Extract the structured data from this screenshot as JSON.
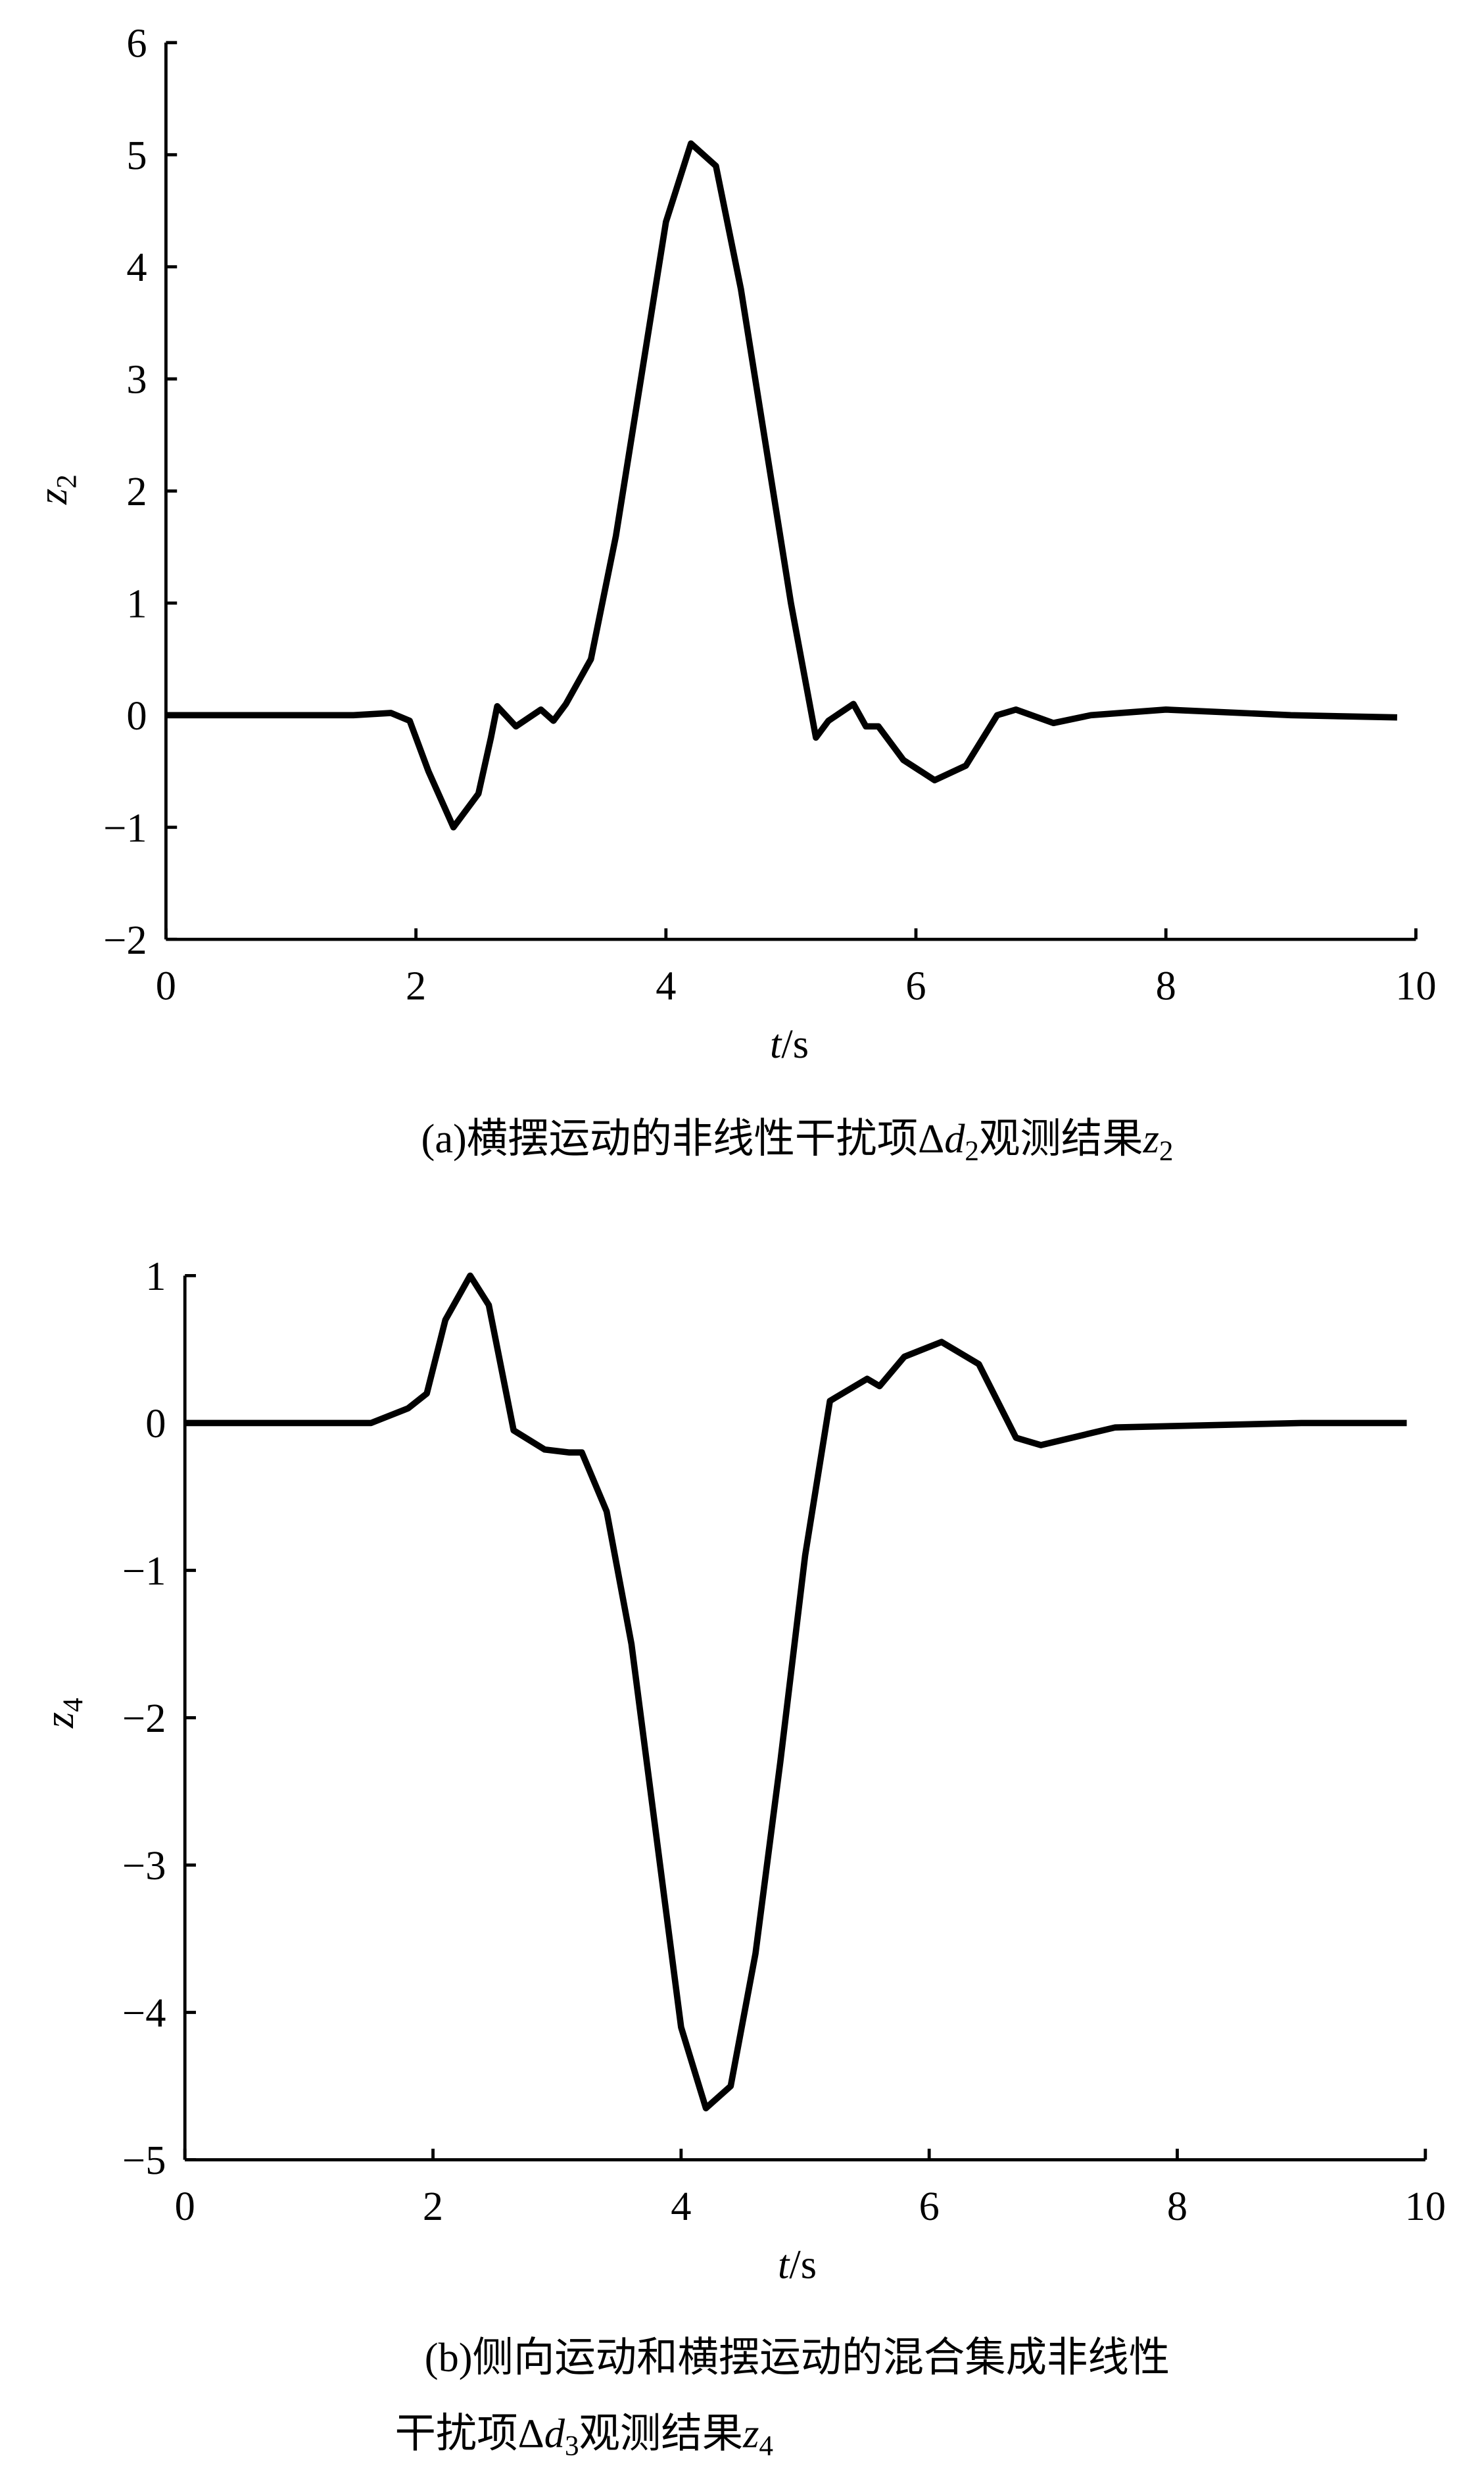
{
  "chart_data": [
    {
      "type": "line",
      "color": "#000000",
      "x": [
        0,
        1.5,
        1.8,
        1.95,
        2.1,
        2.3,
        2.5,
        2.6,
        2.65,
        2.8,
        3.0,
        3.1,
        3.2,
        3.4,
        3.6,
        3.8,
        4.0,
        4.2,
        4.4,
        4.6,
        4.8,
        5.0,
        5.2,
        5.3,
        5.5,
        5.6,
        5.7,
        5.9,
        6.15,
        6.4,
        6.65,
        6.8,
        7.1,
        7.4,
        8.0,
        9.0,
        9.85
      ],
      "values": [
        0,
        0,
        0.02,
        -0.05,
        -0.5,
        -1.0,
        -0.7,
        -0.2,
        0.08,
        -0.1,
        0.05,
        -0.05,
        0.1,
        0.5,
        1.6,
        3.0,
        4.4,
        5.1,
        4.9,
        3.8,
        2.4,
        1.0,
        -0.2,
        -0.05,
        0.1,
        -0.1,
        -0.1,
        -0.4,
        -0.58,
        -0.45,
        0.0,
        0.05,
        -0.07,
        0.0,
        0.05,
        0.0,
        -0.02
      ],
      "xlim": [
        0,
        10
      ],
      "xticks": [
        0,
        2,
        4,
        6,
        8,
        10
      ],
      "ylim": [
        -2,
        6
      ],
      "yticks": [
        {
          "value": -2,
          "label": "−2"
        },
        {
          "value": -1,
          "label": "−1"
        },
        0,
        1,
        2,
        3,
        4,
        5,
        6
      ],
      "xlabel": [
        "t",
        "/s"
      ],
      "ylabel": [
        "z",
        "2"
      ],
      "caption": [
        "(a)横摆运动的非线性干扰项Δ",
        "d",
        "2",
        "观测结果",
        "z",
        "2"
      ]
    },
    {
      "type": "line",
      "color": "#000000",
      "x": [
        0,
        1.5,
        1.8,
        1.95,
        2.1,
        2.3,
        2.45,
        2.65,
        2.9,
        3.1,
        3.2,
        3.4,
        3.6,
        3.8,
        4.0,
        4.2,
        4.4,
        4.6,
        4.8,
        5.0,
        5.2,
        5.5,
        5.6,
        5.8,
        6.1,
        6.4,
        6.7,
        6.9,
        7.5,
        8.0,
        9.0,
        9.85
      ],
      "values": [
        0,
        0,
        0.1,
        0.2,
        0.7,
        1.0,
        0.8,
        -0.05,
        -0.18,
        -0.2,
        -0.2,
        -0.6,
        -1.5,
        -2.8,
        -4.1,
        -4.65,
        -4.5,
        -3.6,
        -2.3,
        -0.9,
        0.15,
        0.3,
        0.25,
        0.45,
        0.55,
        0.4,
        -0.1,
        -0.15,
        -0.03,
        -0.02,
        0.0,
        0.0
      ],
      "xlim": [
        0,
        10
      ],
      "xticks": [
        0,
        2,
        4,
        6,
        8,
        10
      ],
      "ylim": [
        -5,
        1
      ],
      "yticks": [
        {
          "value": -5,
          "label": "−5"
        },
        {
          "value": -4,
          "label": "−4"
        },
        {
          "value": -3,
          "label": "−3"
        },
        {
          "value": -2,
          "label": "−2"
        },
        {
          "value": -1,
          "label": "−1"
        },
        0,
        1
      ],
      "xlabel": [
        "t",
        "/s"
      ],
      "ylabel": [
        "z",
        "4"
      ],
      "caption": [
        "(b)侧向运动和横摆运动的混合集成非线性",
        "干扰项Δ",
        "d",
        "3",
        "观测结果",
        "z",
        "4"
      ]
    }
  ]
}
